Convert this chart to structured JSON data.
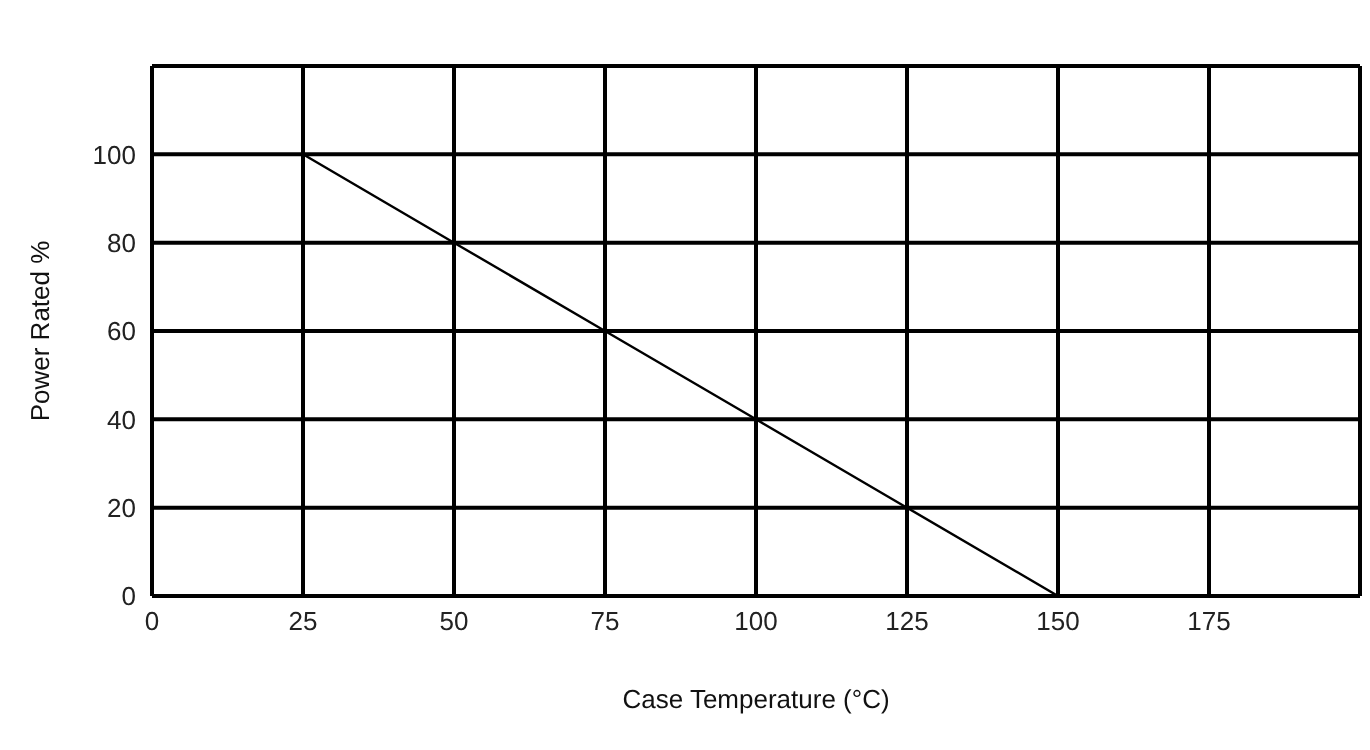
{
  "chart_data": {
    "type": "line",
    "xlabel": "Case Temperature (°C)",
    "ylabel": "Power Rated %",
    "x": [
      25,
      50,
      75,
      100,
      125,
      150
    ],
    "series": [
      {
        "color": "#000000",
        "values": [
          100,
          80,
          60,
          40,
          20,
          0
        ]
      }
    ],
    "xlim": [
      0,
      200
    ],
    "xticks": [
      0,
      25,
      50,
      75,
      100,
      125,
      150,
      175,
      {
        "value": 200,
        "label": null
      }
    ],
    "ylim": [
      0,
      120
    ],
    "yticks": [
      0,
      20,
      40,
      60,
      80,
      100,
      {
        "value": 120,
        "label": null
      }
    ],
    "grid": true,
    "legend": false,
    "marker": "none",
    "line_style": "solid"
  }
}
